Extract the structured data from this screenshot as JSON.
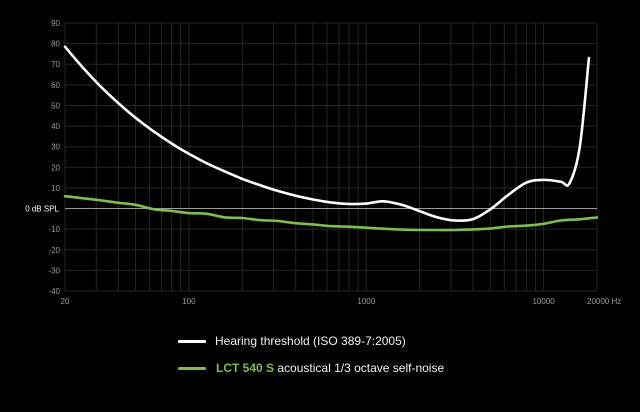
{
  "chart_data": {
    "type": "line",
    "xscale": "log",
    "xlim": [
      20,
      20000
    ],
    "ylim": [
      -40,
      90
    ],
    "grid": true,
    "yticks": [
      90,
      80,
      70,
      60,
      50,
      40,
      30,
      20,
      10,
      0,
      -10,
      -20,
      -30,
      -40
    ],
    "xtick_labels": [
      "20",
      "100",
      "1000",
      "10000",
      "20000 Hz"
    ],
    "reference_line": {
      "y": 0,
      "label": "0 dB SPL"
    },
    "legend_placement": "bottom",
    "series": [
      {
        "name": "Hearing threshold (ISO 389-7:2005)",
        "color": "#ffffff",
        "x": [
          20,
          25,
          31.5,
          40,
          50,
          63,
          80,
          100,
          125,
          160,
          200,
          250,
          315,
          400,
          500,
          630,
          800,
          1000,
          1250,
          1600,
          2000,
          2500,
          3150,
          4000,
          5000,
          6300,
          8000,
          10000,
          12500,
          14000,
          16000,
          18000
        ],
        "values": [
          78.5,
          68.7,
          59.5,
          51.1,
          44.0,
          37.5,
          31.5,
          26.5,
          22.1,
          17.9,
          14.4,
          11.4,
          8.6,
          6.2,
          4.4,
          3.0,
          2.2,
          2.4,
          3.5,
          1.7,
          -1.3,
          -4.2,
          -5.8,
          -5.1,
          -0.4,
          6.5,
          12.6,
          13.9,
          13.0,
          12.3,
          30.0,
          73.0
        ]
      },
      {
        "name": "acoustical 1/3 octave self-noise",
        "name_prefix": "LCT 540 S",
        "color": "#7bc142",
        "x": [
          20,
          25,
          31.5,
          40,
          50,
          63,
          80,
          100,
          125,
          160,
          200,
          250,
          315,
          400,
          500,
          630,
          800,
          1000,
          1250,
          1600,
          2000,
          2500,
          3150,
          4000,
          5000,
          6300,
          8000,
          10000,
          12500,
          16000,
          20000
        ],
        "values": [
          6.0,
          5.0,
          4.0,
          2.8,
          1.8,
          -0.3,
          -1.2,
          -2.2,
          -2.5,
          -4.3,
          -4.6,
          -5.6,
          -6.0,
          -7.1,
          -7.7,
          -8.5,
          -8.8,
          -9.3,
          -9.8,
          -10.2,
          -10.4,
          -10.4,
          -10.4,
          -10.1,
          -9.7,
          -8.7,
          -8.3,
          -7.4,
          -5.8,
          -5.2,
          -4.3
        ]
      }
    ]
  }
}
